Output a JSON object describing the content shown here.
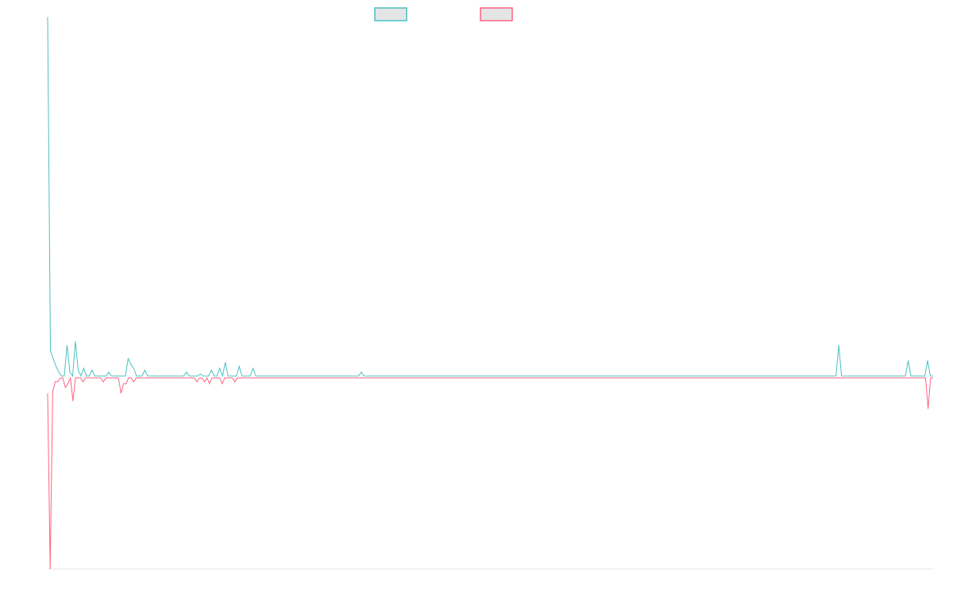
{
  "chart_data": {
    "type": "line",
    "title": "",
    "xlabel": "",
    "ylabel": "",
    "grid": false,
    "legend": {
      "placement": "top-center",
      "show_labels": false
    },
    "ylim": [
      -100,
      180
    ],
    "series": [
      {
        "color": "#4bc0c0",
        "fill": "#e5e5e5",
        "values": [
          186,
          13,
          9,
          5,
          2,
          0,
          0,
          16,
          2,
          0,
          18,
          3,
          0,
          4,
          0,
          0,
          3,
          0,
          0,
          0,
          0,
          0,
          2,
          0,
          0,
          0,
          0,
          0,
          0,
          9,
          6,
          4,
          0,
          0,
          0,
          3,
          0,
          0,
          0,
          0,
          0,
          0,
          0,
          0,
          0,
          0,
          0,
          0,
          0,
          0,
          2,
          0,
          0,
          0,
          0,
          1,
          0,
          0,
          0,
          3,
          0,
          0,
          4,
          0,
          7,
          0,
          0,
          0,
          0,
          5,
          0,
          0,
          0,
          0,
          4,
          0,
          0,
          0,
          0,
          0,
          0,
          0,
          0,
          0,
          0,
          0,
          0,
          0,
          0,
          0,
          0,
          0,
          0,
          0,
          0,
          0,
          0,
          0,
          0,
          0,
          0,
          0,
          0,
          0,
          0,
          0,
          0,
          0,
          0,
          0,
          0,
          0,
          0,
          2,
          0,
          0,
          0,
          0,
          0,
          0,
          0,
          0,
          0,
          0,
          0,
          0,
          0,
          0,
          0,
          0,
          0,
          0,
          0,
          0,
          0,
          0,
          0,
          0,
          0,
          0,
          0,
          0,
          0,
          0,
          0,
          0,
          0,
          0,
          0,
          0,
          0,
          0,
          0,
          0,
          0,
          0,
          0,
          0,
          0,
          0,
          0,
          0,
          0,
          0,
          0,
          0,
          0,
          0,
          0,
          0,
          0,
          0,
          0,
          0,
          0,
          0,
          0,
          0,
          0,
          0,
          0,
          0,
          0,
          0,
          0,
          0,
          0,
          0,
          0,
          0,
          0,
          0,
          0,
          0,
          0,
          0,
          0,
          0,
          0,
          0,
          0,
          0,
          0,
          0,
          0,
          0,
          0,
          0,
          0,
          0,
          0,
          0,
          0,
          0,
          0,
          0,
          0,
          0,
          0,
          0,
          0,
          0,
          0,
          0,
          0,
          0,
          0,
          0,
          0,
          0,
          0,
          0,
          0,
          0,
          0,
          0,
          0,
          0,
          0,
          0,
          0,
          0,
          0,
          0,
          0,
          0,
          0,
          0,
          0,
          0,
          0,
          0,
          0,
          0,
          0,
          0,
          0,
          0,
          0,
          0,
          0,
          0,
          0,
          0,
          0,
          0,
          0,
          0,
          0,
          0,
          0,
          0,
          0,
          0,
          0,
          0,
          0,
          0,
          0,
          0,
          0,
          0,
          0,
          0,
          0,
          16,
          0,
          0,
          0,
          0,
          0,
          0,
          0,
          0,
          0,
          0,
          0,
          0,
          0,
          0,
          0,
          0,
          0,
          0,
          0,
          0,
          0,
          0,
          0,
          0,
          8,
          0,
          0,
          0,
          0,
          0,
          0,
          8,
          0,
          0
        ]
      },
      {
        "color": "#ff6384",
        "fill": "#e5e5e5",
        "values": [
          -9,
          -100,
          -8,
          -3,
          -3,
          -1,
          -1,
          -6,
          -4,
          -1,
          -13,
          -1,
          -1,
          -1,
          -3,
          -1,
          -1,
          -1,
          -1,
          -1,
          -1,
          -1,
          -3,
          -1,
          -1,
          -1,
          -1,
          -1,
          -1,
          -9,
          -4,
          -4,
          -1,
          -1,
          -3,
          -1,
          -1,
          -1,
          -1,
          -1,
          -1,
          -1,
          -1,
          -1,
          -1,
          -1,
          -1,
          -1,
          -1,
          -1,
          -1,
          -1,
          -1,
          -1,
          -1,
          -1,
          -1,
          -1,
          -1,
          -3,
          -1,
          -1,
          -3,
          -1,
          -4,
          -1,
          -1,
          -1,
          -1,
          -4,
          -1,
          -1,
          -1,
          -1,
          -3,
          -1,
          -1,
          -1,
          -1,
          -1,
          -1,
          -1,
          -1,
          -1,
          -1,
          -1,
          -1,
          -1,
          -1,
          -1,
          -1,
          -1,
          -1,
          -1,
          -1,
          -1,
          -1,
          -1,
          -1,
          -1,
          -1,
          -1,
          -1,
          -1,
          -1,
          -1,
          -1,
          -1,
          -1,
          -1,
          -1,
          -1,
          -1,
          -1,
          -1,
          -1,
          -1,
          -1,
          -1,
          -1,
          -1,
          -1,
          -1,
          -1,
          -1,
          -1,
          -1,
          -1,
          -1,
          -1,
          -1,
          -1,
          -1,
          -1,
          -1,
          -1,
          -1,
          -1,
          -1,
          -1,
          -1,
          -1,
          -1,
          -1,
          -1,
          -1,
          -1,
          -1,
          -1,
          -1,
          -1,
          -1,
          -1,
          -1,
          -1,
          -1,
          -1,
          -1,
          -1,
          -1,
          -1,
          -1,
          -1,
          -1,
          -1,
          -1,
          -1,
          -1,
          -1,
          -1,
          -1,
          -1,
          -1,
          -1,
          -1,
          -1,
          -1,
          -1,
          -1,
          -1,
          -1,
          -1,
          -1,
          -1,
          -1,
          -1,
          -1,
          -1,
          -1,
          -1,
          -1,
          -1,
          -1,
          -1,
          -1,
          -1,
          -1,
          -1,
          -1,
          -1,
          -1,
          -1,
          -1,
          -1,
          -1,
          -1,
          -1,
          -1,
          -1,
          -1,
          -1,
          -1,
          -1,
          -1,
          -1,
          -1,
          -1,
          -1,
          -1,
          -1,
          -1,
          -1,
          -1,
          -1,
          -1,
          -1,
          -1,
          -1,
          -1,
          -1,
          -1,
          -1,
          -1,
          -1,
          -1,
          -1,
          -1,
          -1,
          -1,
          -1,
          -1,
          -1,
          -1,
          -1,
          -1,
          -1,
          -1,
          -1,
          -1,
          -1,
          -1,
          -1,
          -1,
          -1,
          -1,
          -1,
          -1,
          -1,
          -1,
          -1,
          -1,
          -1,
          -1,
          -1,
          -1,
          -1,
          -1,
          -1,
          -1,
          -1,
          -1,
          -1,
          -1,
          -1,
          -1,
          -1,
          -1,
          -1,
          -1,
          -1,
          -1,
          -1,
          -1,
          -1,
          -1,
          -1,
          -1,
          -1,
          -1,
          -1,
          -1,
          -1,
          -1,
          -1,
          -1,
          -1,
          -1,
          -1,
          -1,
          -1,
          -1,
          -1,
          -1,
          -1,
          -1,
          -1,
          -1,
          -1,
          -1,
          -1,
          -1,
          -1,
          -1,
          -1,
          -1,
          -1,
          -1,
          -1,
          -1,
          -1,
          -1,
          -1,
          -1,
          -1,
          -1,
          -1,
          -1,
          -1,
          -1,
          -1,
          -1,
          -1,
          -1,
          -1,
          -1,
          -1,
          -1,
          -1,
          -1,
          -1,
          -1,
          -1,
          -1,
          -1,
          -1,
          -1,
          -1,
          -1,
          -17,
          -1,
          -1
        ]
      }
    ]
  }
}
